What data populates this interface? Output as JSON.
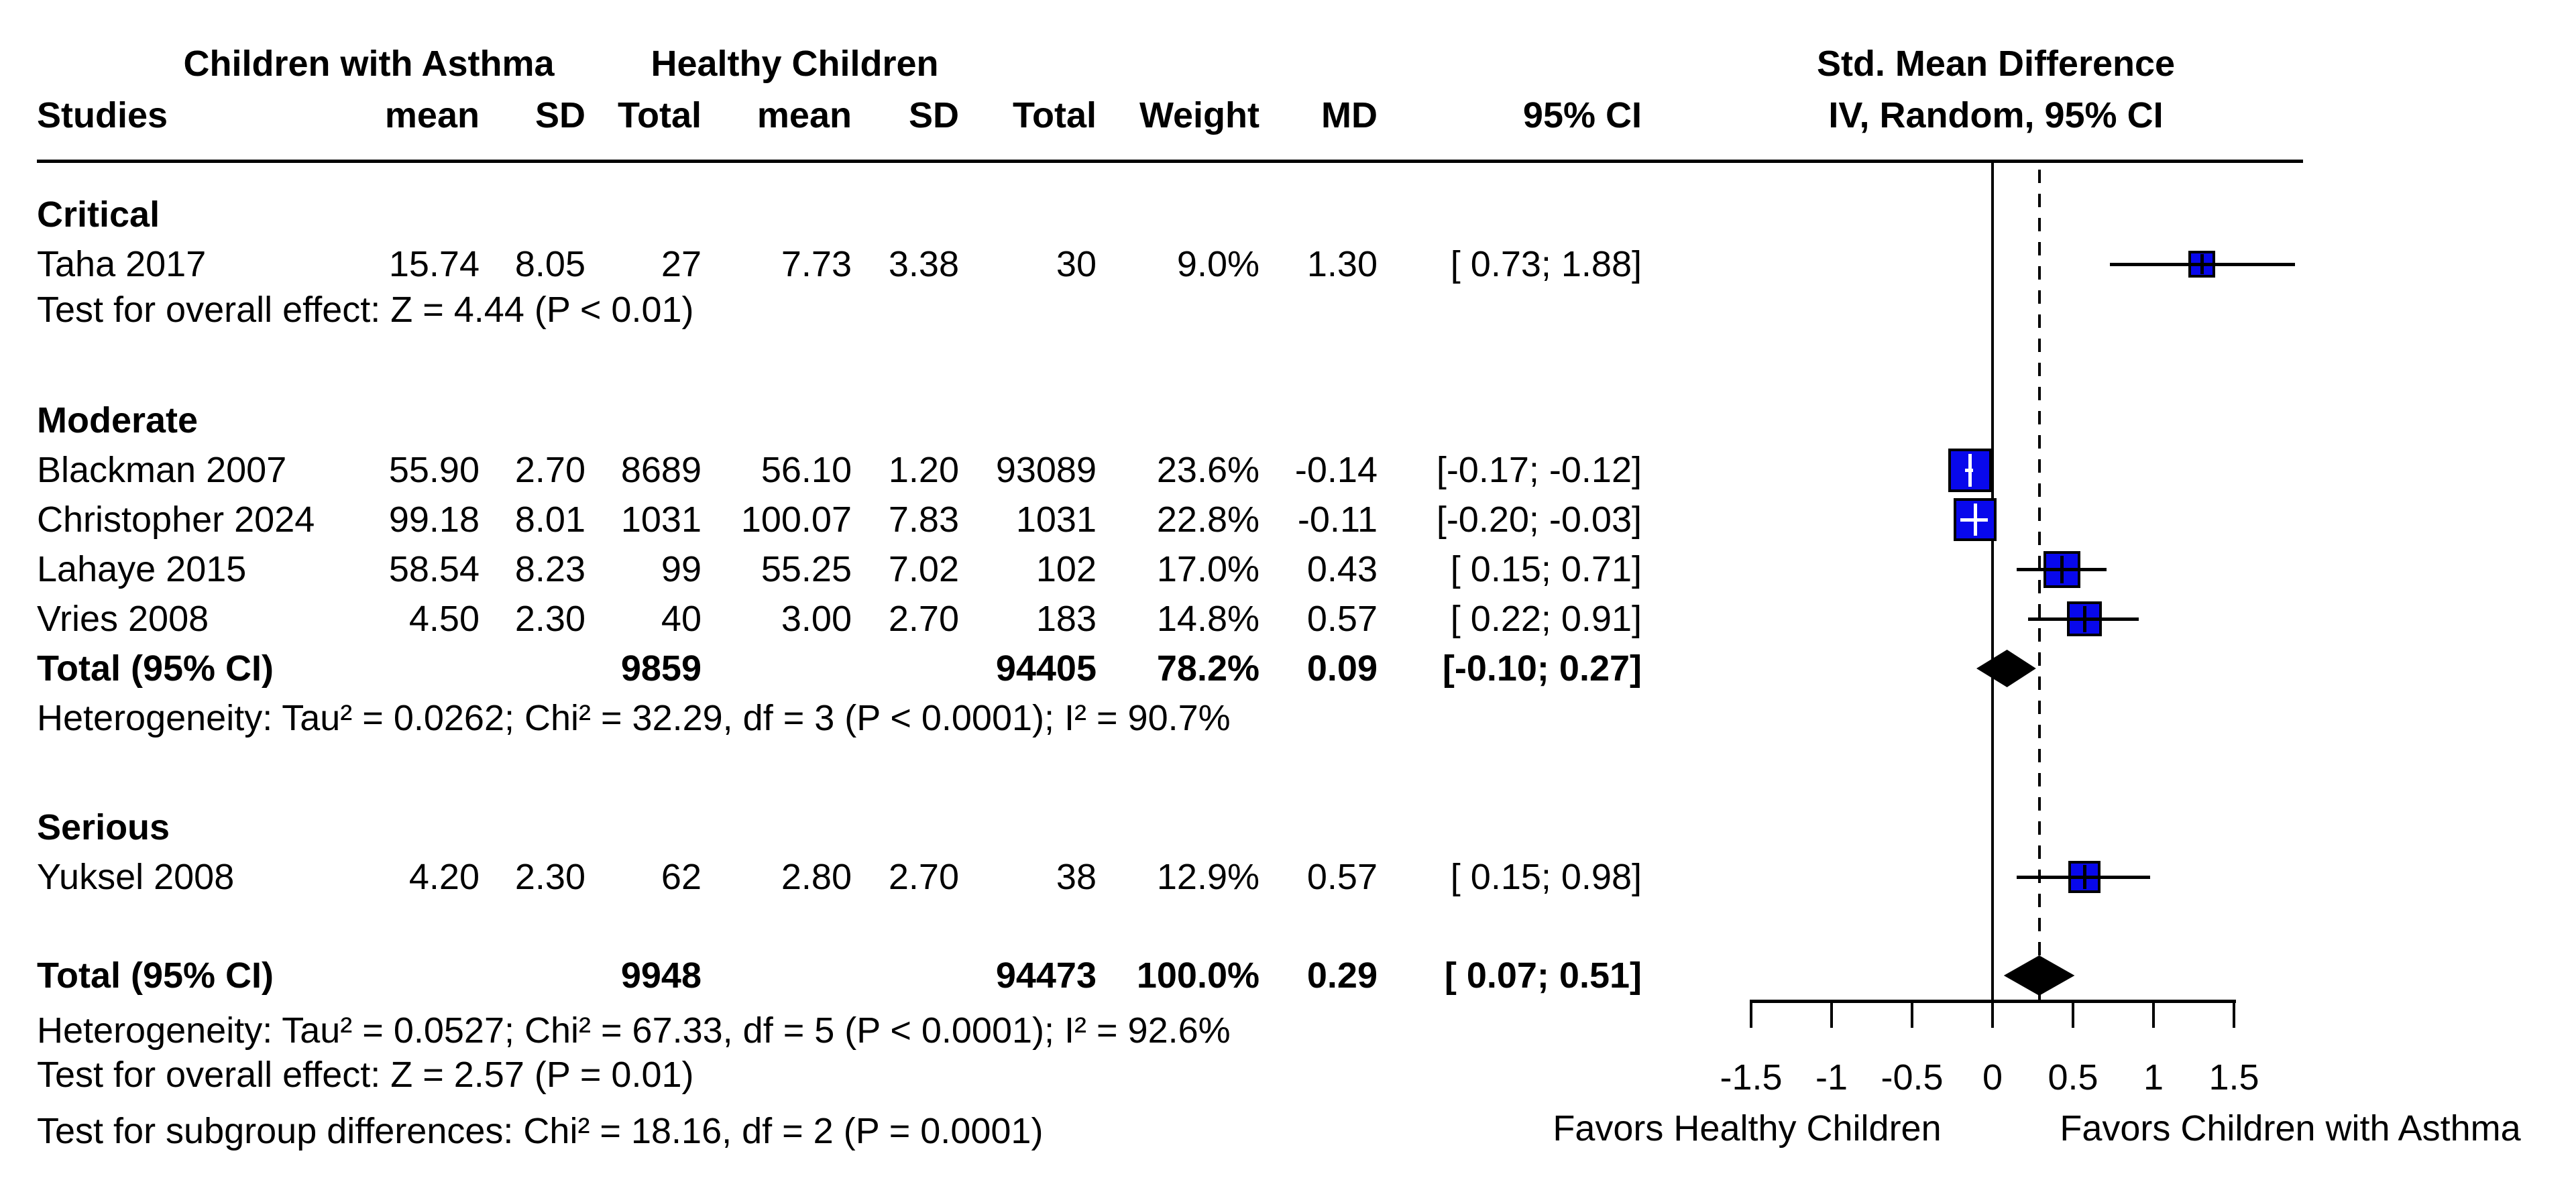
{
  "header": {
    "group1": "Children with Asthma",
    "group2": "Healthy Children",
    "effect_title": "Std. Mean Difference",
    "effect_subtitle": "IV, Random, 95% CI",
    "columns": [
      "Studies",
      "mean",
      "SD",
      "Total",
      "mean",
      "SD",
      "Total",
      "Weight",
      "MD",
      "95% CI"
    ]
  },
  "colors": {
    "marker_fill": "#0808ec",
    "marker_border": "#000000",
    "diamond_fill": "#000000",
    "text": "#000000"
  },
  "chart_data": {
    "type": "forest",
    "effect_measure": "Std. Mean Difference (IV, Random, 95% CI)",
    "x_axis": {
      "ticks": [
        -1.5,
        -1,
        -0.5,
        0,
        0.5,
        1,
        1.5
      ],
      "tick_labels": [
        "-1.5",
        "-1",
        "-0.5",
        "0",
        "0.5",
        "1",
        "1.5"
      ],
      "range": [
        -1.5,
        1.5
      ],
      "zero_line": 0,
      "overall_dashed_line": 0.29,
      "left_label": "Favors Healthy Children",
      "right_label": "Favors Children with Asthma"
    },
    "subgroups": [
      {
        "name": "Critical",
        "studies": [
          {
            "label": "Taha 2017",
            "cells": [
              "15.74",
              "8.05",
              "27",
              "7.73",
              "3.38",
              "30",
              "9.0%",
              "1.30",
              "[ 0.73;  1.88]"
            ],
            "md": 1.3,
            "lo": 0.73,
            "hi": 1.88,
            "weight_pct": 9.0
          }
        ],
        "footers": [
          "Test for overall effect: Z = 4.44 (P < 0.01)"
        ]
      },
      {
        "name": "Moderate",
        "studies": [
          {
            "label": "Blackman 2007",
            "cells": [
              "55.90",
              "2.70",
              "8689",
              "56.10",
              "1.20",
              "93089",
              "23.6%",
              "-0.14",
              "[-0.17; -0.12]"
            ],
            "md": -0.14,
            "lo": -0.17,
            "hi": -0.12,
            "weight_pct": 23.6
          },
          {
            "label": "Christopher 2024",
            "cells": [
              "99.18",
              "8.01",
              "1031",
              "100.07",
              "7.83",
              "1031",
              "22.8%",
              "-0.11",
              "[-0.20; -0.03]"
            ],
            "md": -0.11,
            "lo": -0.2,
            "hi": -0.03,
            "weight_pct": 22.8
          },
          {
            "label": "Lahaye 2015",
            "cells": [
              "58.54",
              "8.23",
              "99",
              "55.25",
              "7.02",
              "102",
              "17.0%",
              "0.43",
              "[ 0.15;  0.71]"
            ],
            "md": 0.43,
            "lo": 0.15,
            "hi": 0.71,
            "weight_pct": 17.0
          },
          {
            "label": "Vries 2008",
            "cells": [
              "4.50",
              "2.30",
              "40",
              "3.00",
              "2.70",
              "183",
              "14.8%",
              "0.57",
              "[ 0.22;  0.91]"
            ],
            "md": 0.57,
            "lo": 0.22,
            "hi": 0.91,
            "weight_pct": 14.8
          }
        ],
        "total": {
          "label": "Total (95% CI)",
          "cells": [
            "9859",
            "94405",
            "78.2%",
            "0.09",
            "[-0.10;  0.27]"
          ],
          "md": 0.09,
          "lo": -0.1,
          "hi": 0.27
        },
        "footers": [
          "Heterogeneity: Tau² = 0.0262; Chi² = 32.29, df = 3 (P < 0.0001); I² = 90.7%"
        ]
      },
      {
        "name": "Serious",
        "studies": [
          {
            "label": "Yuksel 2008",
            "cells": [
              "4.20",
              "2.30",
              "62",
              "2.80",
              "2.70",
              "38",
              "12.9%",
              "0.57",
              "[ 0.15;  0.98]"
            ],
            "md": 0.57,
            "lo": 0.15,
            "hi": 0.98,
            "weight_pct": 12.9
          }
        ],
        "footers": []
      }
    ],
    "overall": {
      "label": "Total (95% CI)",
      "cells": [
        "9948",
        "94473",
        "100.0%",
        "0.29",
        "[ 0.07;  0.51]"
      ],
      "md": 0.29,
      "lo": 0.07,
      "hi": 0.51
    },
    "overall_footers": [
      "Heterogeneity: Tau² = 0.0527; Chi² = 67.33, df = 5 (P < 0.0001); I² = 92.6%",
      "Test for overall effect: Z = 2.57 (P = 0.01)",
      "Test for subgroup differences: Chi² = 18.16, df = 2 (P = 0.0001)"
    ]
  }
}
